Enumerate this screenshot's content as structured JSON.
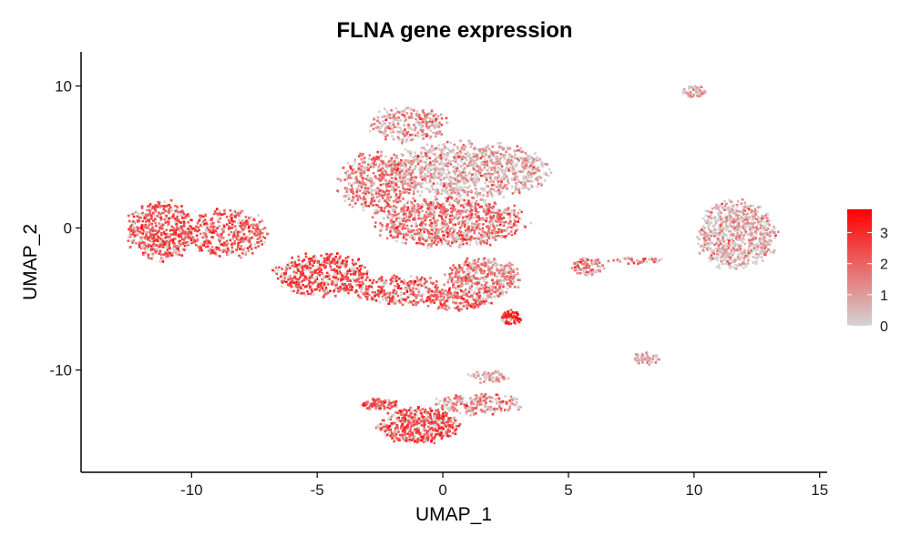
{
  "chart_data": {
    "type": "scatter",
    "title": "FLNA gene expression",
    "xlabel": "UMAP_1",
    "ylabel": "UMAP_2",
    "xlim": [
      -14.4,
      15.3
    ],
    "ylim": [
      -17.2,
      12.4
    ],
    "xticks": [
      -10,
      -5,
      0,
      5,
      10,
      15
    ],
    "yticks": [
      -10,
      0,
      10
    ],
    "xtick_labels": [
      "-10",
      "-5",
      "0",
      "5",
      "10",
      "15"
    ],
    "ytick_labels": [
      "-10",
      "0",
      "10"
    ],
    "grid": false,
    "legend": {
      "placement": "right",
      "title": "",
      "min": 0,
      "max": 3.75,
      "ticks": [
        0,
        1,
        2,
        3
      ],
      "tick_labels": [
        "0",
        "1",
        "2",
        "3"
      ],
      "color_low": "#d3d3d3",
      "color_high": "#ff0000"
    },
    "clusters": [
      {
        "name": "left-blob",
        "cx": -11.2,
        "cy": -0.2,
        "rx": 1.3,
        "ry": 2.0,
        "n": 520,
        "expr_mean": 2.4,
        "expr_sd": 0.5
      },
      {
        "name": "left-blob-right",
        "cx": -8.6,
        "cy": -0.4,
        "rx": 1.6,
        "ry": 1.6,
        "n": 380,
        "expr_mean": 2.3,
        "expr_sd": 0.6
      },
      {
        "name": "mid-left-arm",
        "cx": -4.8,
        "cy": -3.3,
        "rx": 1.8,
        "ry": 1.4,
        "n": 480,
        "expr_mean": 2.6,
        "expr_sd": 0.5
      },
      {
        "name": "mid-lower-arm",
        "cx": -1.6,
        "cy": -4.4,
        "rx": 1.9,
        "ry": 1.0,
        "n": 320,
        "expr_mean": 2.2,
        "expr_sd": 0.7
      },
      {
        "name": "upper-top-lobe",
        "cx": -1.4,
        "cy": 7.3,
        "rx": 1.5,
        "ry": 1.2,
        "n": 260,
        "expr_mean": 1.3,
        "expr_sd": 0.8
      },
      {
        "name": "upper-main",
        "cx": 0.9,
        "cy": 4.0,
        "rx": 3.2,
        "ry": 1.9,
        "n": 1100,
        "expr_mean": 0.9,
        "expr_sd": 0.8
      },
      {
        "name": "upper-left",
        "cx": -2.7,
        "cy": 3.2,
        "rx": 1.4,
        "ry": 2.0,
        "n": 420,
        "expr_mean": 1.7,
        "expr_sd": 0.7
      },
      {
        "name": "center",
        "cx": 0.3,
        "cy": 0.4,
        "rx": 2.9,
        "ry": 1.7,
        "n": 900,
        "expr_mean": 1.9,
        "expr_sd": 0.7
      },
      {
        "name": "lower-center",
        "cx": 1.6,
        "cy": -3.6,
        "rx": 1.4,
        "ry": 1.4,
        "n": 420,
        "expr_mean": 1.5,
        "expr_sd": 0.8
      },
      {
        "name": "hotspot-tip",
        "cx": 2.7,
        "cy": -6.3,
        "rx": 0.4,
        "ry": 0.5,
        "n": 70,
        "expr_mean": 3.3,
        "expr_sd": 0.3
      },
      {
        "name": "lower-satellite",
        "cx": 0.6,
        "cy": -5.2,
        "rx": 1.2,
        "ry": 0.6,
        "n": 140,
        "expr_mean": 2.1,
        "expr_sd": 0.6
      },
      {
        "name": "small-center-right",
        "cx": 5.8,
        "cy": -2.7,
        "rx": 0.6,
        "ry": 0.6,
        "n": 90,
        "expr_mean": 1.6,
        "expr_sd": 0.8
      },
      {
        "name": "bridge",
        "cx": 7.7,
        "cy": -2.3,
        "rx": 1.2,
        "ry": 0.2,
        "n": 40,
        "expr_mean": 1.6,
        "expr_sd": 0.8
      },
      {
        "name": "right-cluster",
        "cx": 11.7,
        "cy": -0.5,
        "rx": 1.5,
        "ry": 2.3,
        "n": 750,
        "expr_mean": 0.9,
        "expr_sd": 0.8
      },
      {
        "name": "top-right-small",
        "cx": 10.0,
        "cy": 9.6,
        "rx": 0.5,
        "ry": 0.4,
        "n": 60,
        "expr_mean": 0.9,
        "expr_sd": 0.8
      },
      {
        "name": "small-right-bottom",
        "cx": 8.1,
        "cy": -9.2,
        "rx": 0.5,
        "ry": 0.4,
        "n": 60,
        "expr_mean": 0.8,
        "expr_sd": 0.7
      },
      {
        "name": "bottom-main",
        "cx": -1.0,
        "cy": -13.9,
        "rx": 1.5,
        "ry": 1.2,
        "n": 500,
        "expr_mean": 2.4,
        "expr_sd": 0.6
      },
      {
        "name": "bottom-left",
        "cx": -2.5,
        "cy": -12.4,
        "rx": 0.7,
        "ry": 0.4,
        "n": 90,
        "expr_mean": 2.3,
        "expr_sd": 0.6
      },
      {
        "name": "bottom-arm",
        "cx": 1.4,
        "cy": -12.4,
        "rx": 1.7,
        "ry": 0.7,
        "n": 200,
        "expr_mean": 1.4,
        "expr_sd": 0.9
      },
      {
        "name": "bottom-top-arm",
        "cx": 1.8,
        "cy": -10.5,
        "rx": 0.9,
        "ry": 0.4,
        "n": 60,
        "expr_mean": 0.8,
        "expr_sd": 0.7
      }
    ]
  }
}
